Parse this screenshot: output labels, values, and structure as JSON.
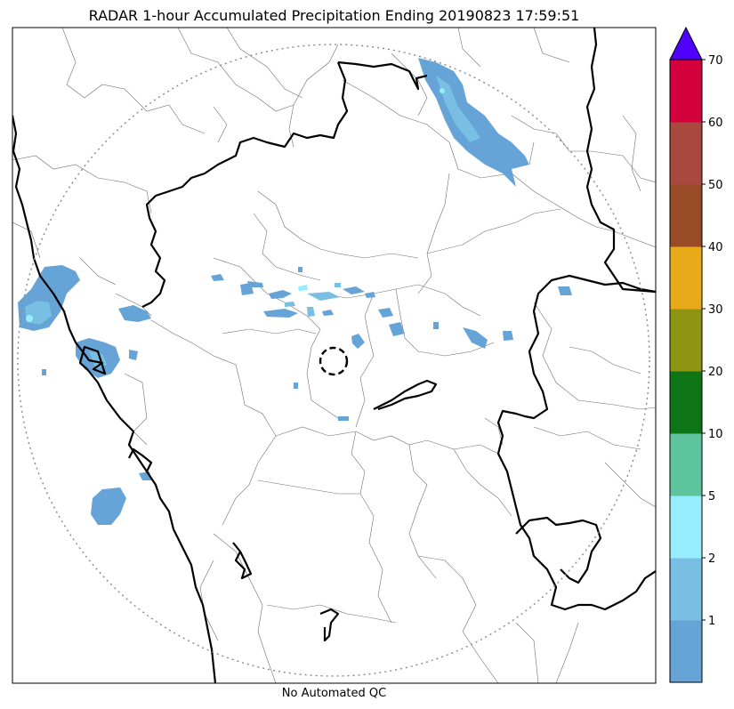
{
  "title": "RADAR 1-hour Accumulated Precipitation Ending 20190823 17:59:51",
  "subtitle": "No Automated QC",
  "colorbar": {
    "labels": [
      "1",
      "2",
      "5",
      "10",
      "20",
      "30",
      "40",
      "50",
      "60",
      "70"
    ],
    "colors": [
      "#66a3d6",
      "#78bfe3",
      "#96eefc",
      "#5ec49d",
      "#0e7516",
      "#8e9515",
      "#e8aa18",
      "#994b27",
      "#a8483f",
      "#d4003e"
    ],
    "extend_color": "#4f00ff"
  },
  "colors": {
    "precip_light": "#66a3d6",
    "precip_medium": "#78bfe3",
    "precip_cyan": "#96eefc",
    "state_border": "#000000",
    "district_border": "#7a7a7a",
    "range_ring": "#888888"
  }
}
